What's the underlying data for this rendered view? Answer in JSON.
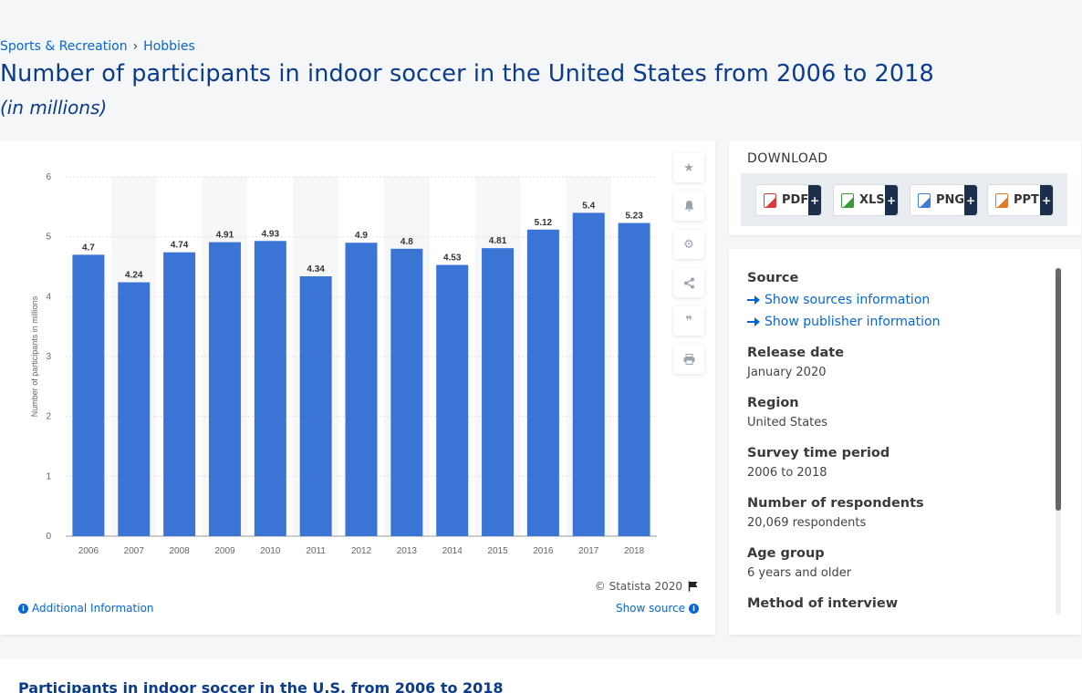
{
  "breadcrumb": {
    "items": [
      "Sports & Recreation",
      "Hobbies"
    ],
    "separator": "›"
  },
  "page": {
    "title": "Number of participants in indoor soccer in the United States from 2006 to 2018",
    "subtitle": "(in millions)"
  },
  "chart_footer": {
    "copyright": "© Statista 2020",
    "additional_info": "Additional Information",
    "show_source": "Show source"
  },
  "tools": [
    "star-icon",
    "bell-icon",
    "gear-icon",
    "share-icon",
    "quote-icon",
    "print-icon"
  ],
  "download": {
    "title": "DOWNLOAD",
    "buttons": [
      {
        "label": "PDF",
        "color": "#d93b3b"
      },
      {
        "label": "XLS",
        "color": "#3a9a3a"
      },
      {
        "label": "PNG",
        "color": "#3d7dd6"
      },
      {
        "label": "PPT",
        "color": "#e07a2a"
      }
    ],
    "plus": "+"
  },
  "details": {
    "source_label": "Source",
    "show_sources": "Show sources information",
    "show_publisher": "Show publisher information",
    "release_label": "Release date",
    "release_value": "January 2020",
    "region_label": "Region",
    "region_value": "United States",
    "period_label": "Survey time period",
    "period_value": "2006 to 2018",
    "respondents_label": "Number of respondents",
    "respondents_value": "20,069 respondents",
    "age_label": "Age group",
    "age_value": "6 years and older",
    "method_label": "Method of interview"
  },
  "bottom": {
    "title": "Participants in indoor soccer in the U.S. from 2006 to 2018"
  },
  "chart_data": {
    "type": "bar",
    "categories": [
      "2006",
      "2007",
      "2008",
      "2009",
      "2010",
      "2011",
      "2012",
      "2013",
      "2014",
      "2015",
      "2016",
      "2017",
      "2018"
    ],
    "values": [
      4.7,
      4.24,
      4.74,
      4.91,
      4.93,
      4.34,
      4.9,
      4.8,
      4.53,
      4.81,
      5.12,
      5.4,
      5.23
    ],
    "value_labels": [
      "4.7",
      "4.24",
      "4.74",
      "4.91",
      "4.93",
      "4.34",
      "4.9",
      "4.8",
      "4.53",
      "4.81",
      "5.12",
      "5.4",
      "5.23"
    ],
    "ylabel": "Number of participants in millions",
    "ylim": [
      0,
      6
    ],
    "yticks": [
      "0",
      "1",
      "2",
      "3",
      "4",
      "5",
      "6"
    ],
    "bar_color": "#3a75d6",
    "grid": true
  }
}
